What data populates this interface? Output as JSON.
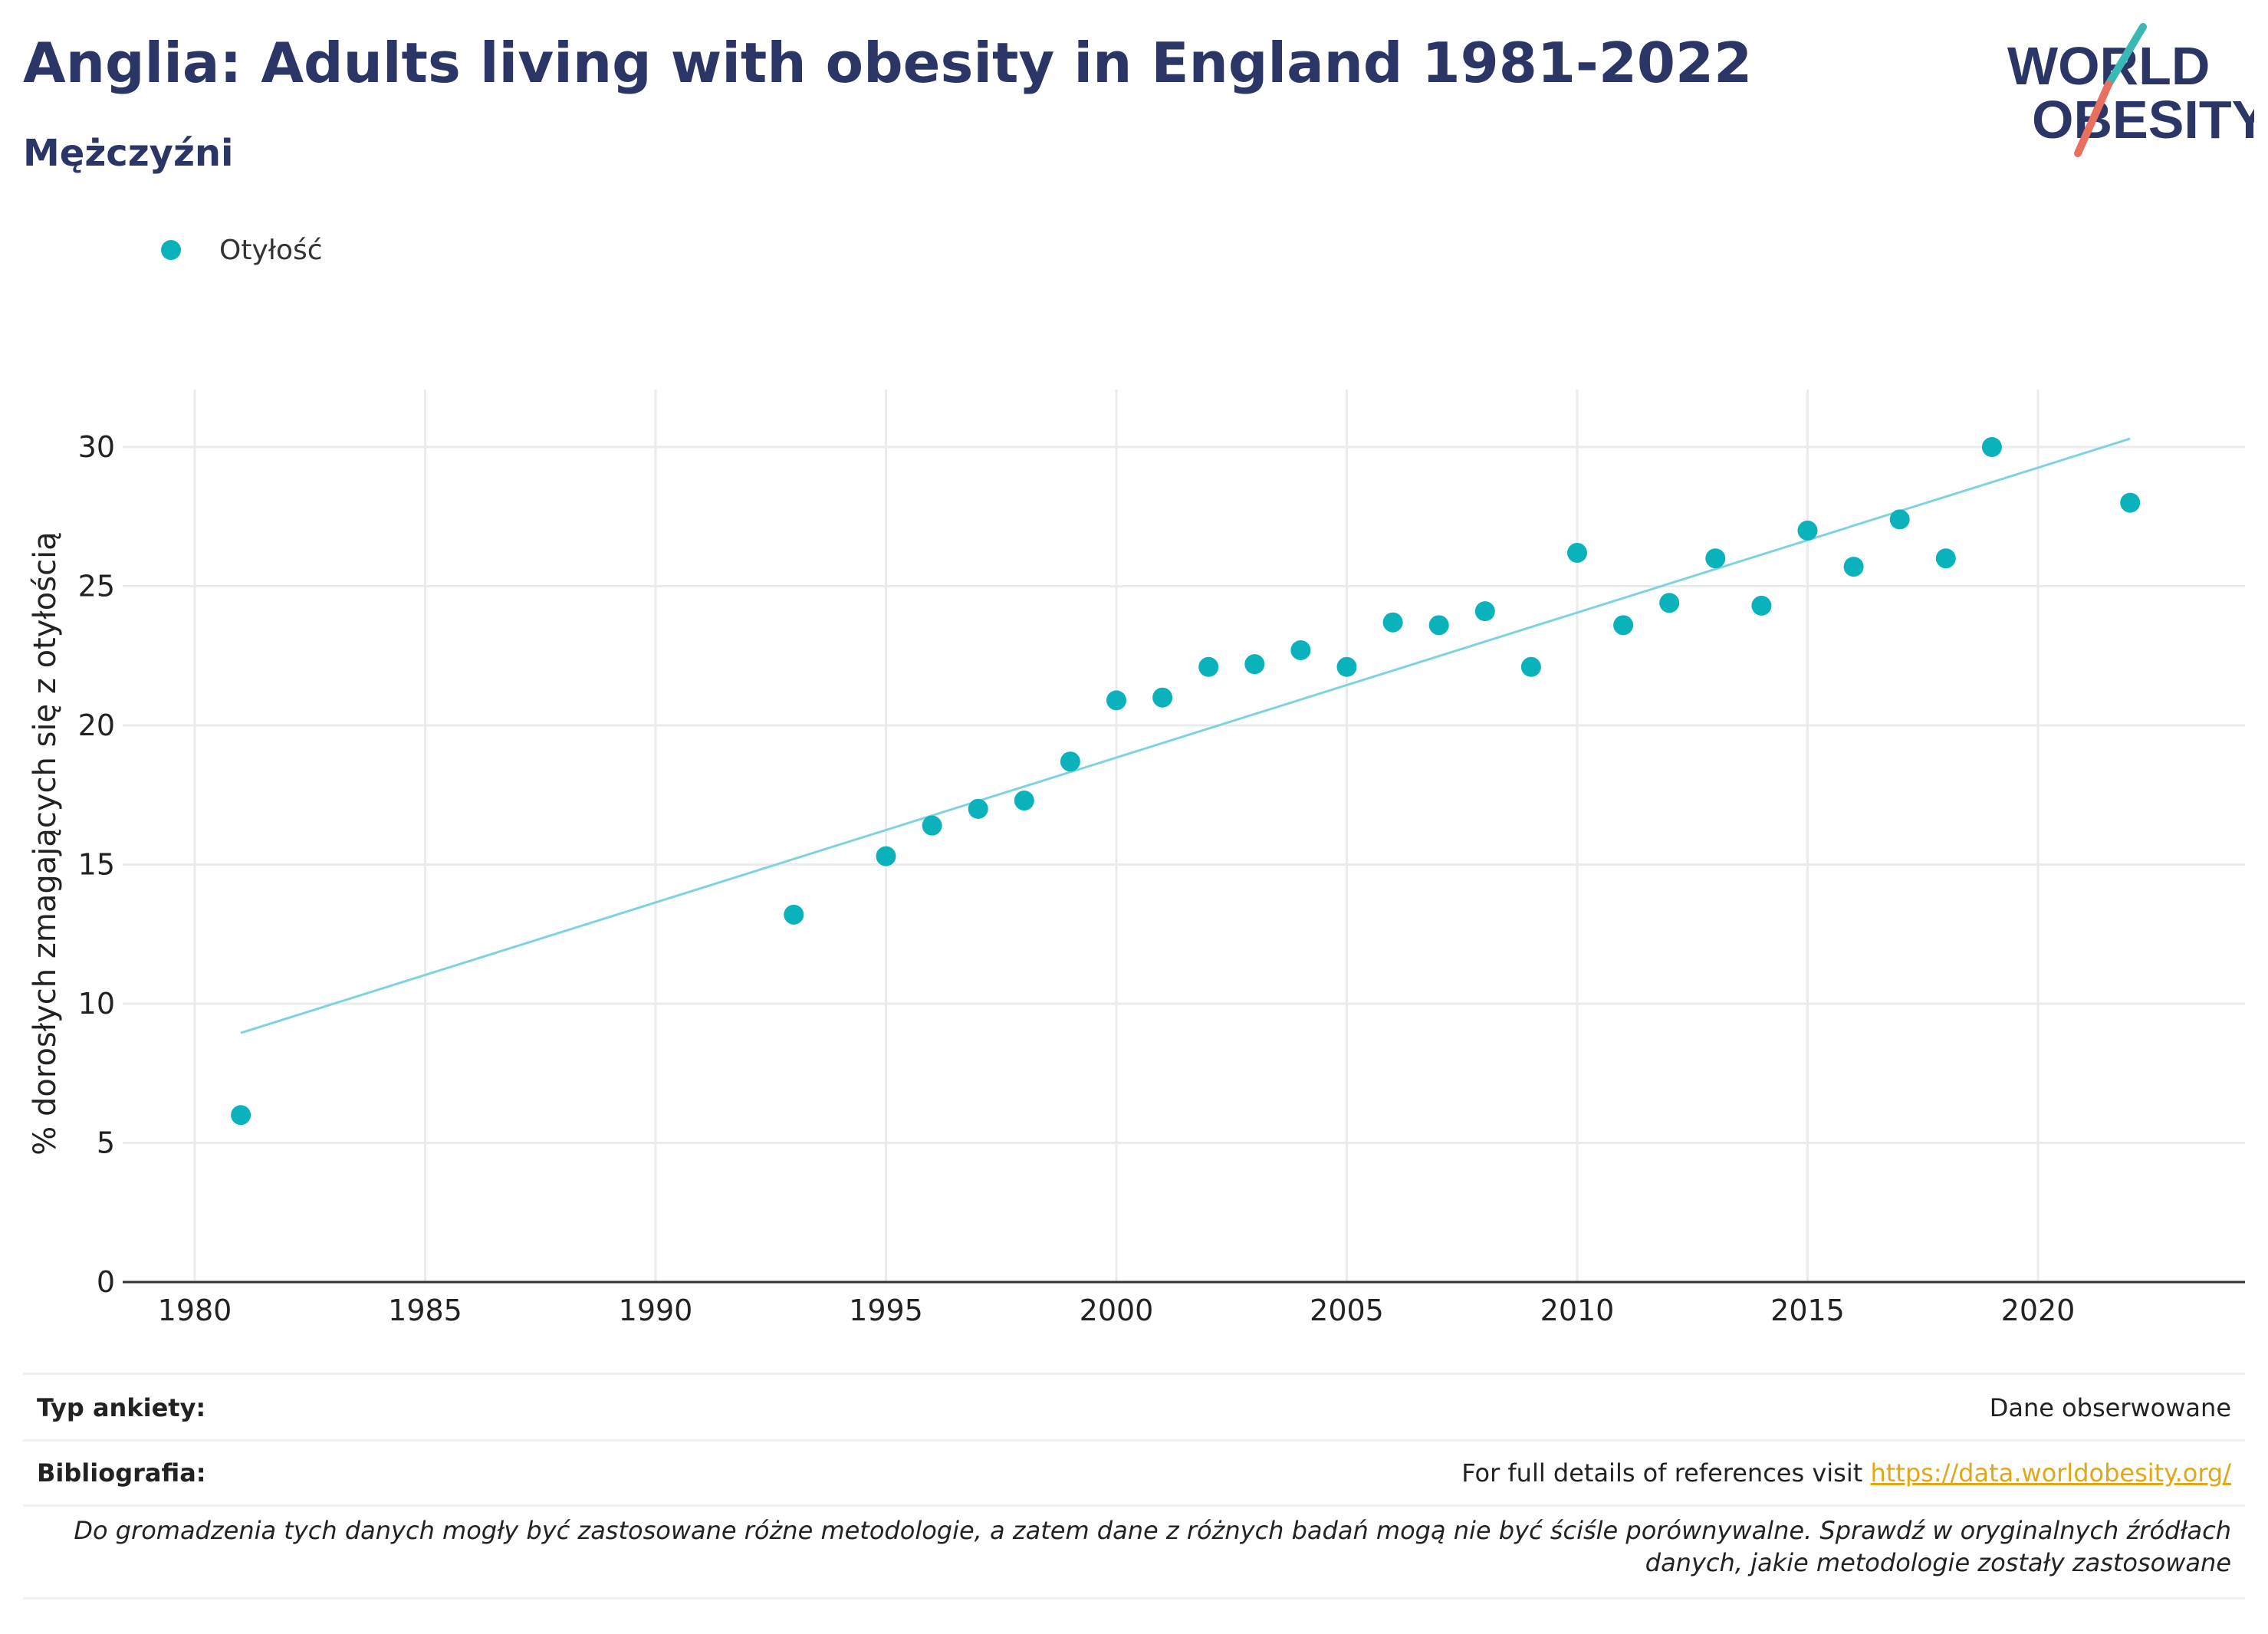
{
  "header": {
    "title": "Anglia: Adults living with obesity in England 1981-2022",
    "subtitle": "Mężczyźni"
  },
  "logo": {
    "line1": "WORLD",
    "line2": "OBESITY"
  },
  "legend": {
    "label": "Otyłość"
  },
  "chart_data": {
    "type": "scatter",
    "title": "Anglia: Adults living with obesity in England 1981-2022",
    "subtitle": "Mężczyźni",
    "xlabel": "",
    "ylabel": "% dorosłych zmagających się z otyłością",
    "xlim": [
      1979,
      2024.5
    ],
    "ylim": [
      0,
      32
    ],
    "x_ticks": [
      1980,
      1985,
      1990,
      1995,
      2000,
      2005,
      2010,
      2015,
      2020
    ],
    "y_ticks": [
      0,
      5,
      10,
      15,
      20,
      25,
      30
    ],
    "grid": true,
    "legend_position": "top-left",
    "series": [
      {
        "name": "Otyłość",
        "color": "#0ab3bc",
        "points": [
          {
            "x": 1981,
            "y": 6.0
          },
          {
            "x": 1993,
            "y": 13.2
          },
          {
            "x": 1995,
            "y": 15.3
          },
          {
            "x": 1996,
            "y": 16.4
          },
          {
            "x": 1997,
            "y": 17.0
          },
          {
            "x": 1998,
            "y": 17.3
          },
          {
            "x": 1999,
            "y": 18.7
          },
          {
            "x": 2000,
            "y": 20.9
          },
          {
            "x": 2001,
            "y": 21.0
          },
          {
            "x": 2002,
            "y": 22.1
          },
          {
            "x": 2003,
            "y": 22.2
          },
          {
            "x": 2004,
            "y": 22.7
          },
          {
            "x": 2005,
            "y": 22.1
          },
          {
            "x": 2006,
            "y": 23.7
          },
          {
            "x": 2007,
            "y": 23.6
          },
          {
            "x": 2008,
            "y": 24.1
          },
          {
            "x": 2009,
            "y": 22.1
          },
          {
            "x": 2010,
            "y": 26.2
          },
          {
            "x": 2011,
            "y": 23.6
          },
          {
            "x": 2012,
            "y": 24.4
          },
          {
            "x": 2013,
            "y": 26.0
          },
          {
            "x": 2014,
            "y": 24.3
          },
          {
            "x": 2015,
            "y": 27.0
          },
          {
            "x": 2016,
            "y": 25.7
          },
          {
            "x": 2017,
            "y": 27.4
          },
          {
            "x": 2018,
            "y": 26.0
          },
          {
            "x": 2019,
            "y": 30.0
          },
          {
            "x": 2022,
            "y": 28.0
          }
        ]
      }
    ],
    "trendline": {
      "color": "#7fd3dc",
      "start": {
        "x": 1981,
        "y": 8.95
      },
      "end": {
        "x": 2022,
        "y": 30.3
      }
    }
  },
  "info": {
    "survey_label": "Typ ankiety:",
    "survey_value": "Dane obserwowane",
    "biblio_label": "Bibliografia:",
    "biblio_text": "For full details of references visit ",
    "biblio_link": "https://data.worldobesity.org/",
    "note_line1": "Do gromadzenia tych danych mogły być zastosowane różne metodologie, a zatem dane z różnych badań mogą nie być ściśle porównywalne. Sprawdź w oryginalnych źródłach",
    "note_line2": "danych, jakie metodologie zostały zastosowane"
  },
  "colors": {
    "title": "#2b3566",
    "accent": "#0ab3bc",
    "logo_teal": "#3ab8b5",
    "logo_coral": "#e8705f",
    "link": "#e0a818"
  }
}
